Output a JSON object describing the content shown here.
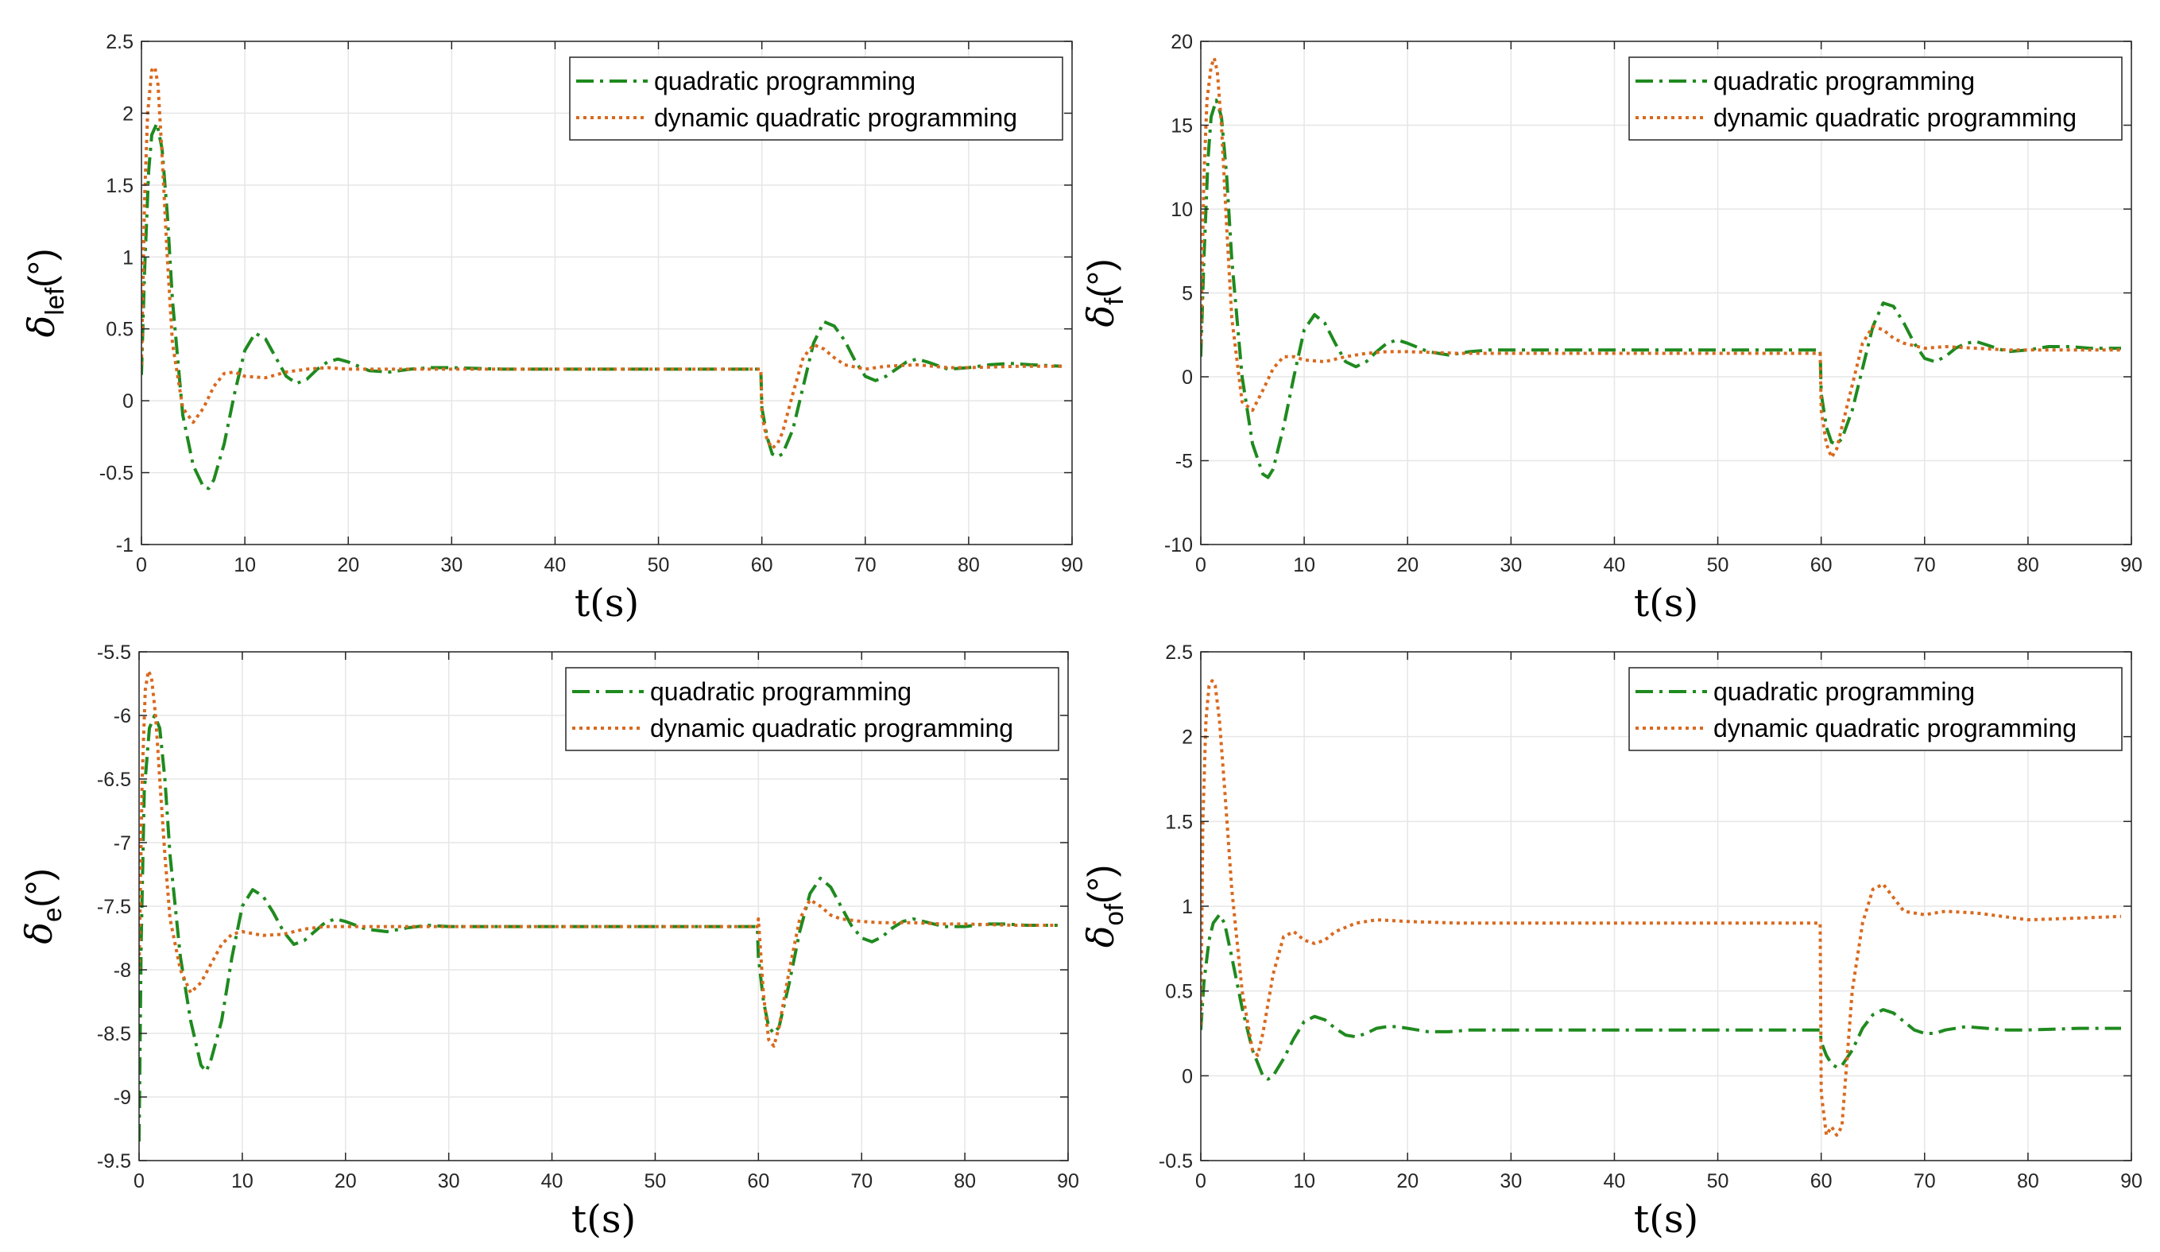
{
  "figure": {
    "legend_labels": [
      "quadratic programming",
      "dynamic quadratic programming"
    ],
    "colors": {
      "qp": "#1f8a1f",
      "dqp": "#d9691e",
      "grid": "#e6e6e6",
      "axis": "#262626"
    }
  },
  "chart_data": [
    {
      "id": "lef",
      "type": "line",
      "title": "",
      "xlabel": "t(s)",
      "ylabel": {
        "symbol": "δ",
        "subscript": "lef",
        "unit": "(°)"
      },
      "xlim": [
        0,
        90
      ],
      "ylim": [
        -1,
        2.5
      ],
      "xticks": [
        "0",
        "10",
        "20",
        "30",
        "40",
        "50",
        "60",
        "70",
        "80",
        "90"
      ],
      "yticks": [
        "-1",
        "-0.5",
        "0",
        "0.5",
        "1",
        "1.5",
        "2",
        "2.5"
      ],
      "legend": "top-right",
      "grid": true,
      "series": [
        {
          "name": "quadratic programming",
          "style": "dash-dot",
          "x": [
            0,
            0.3,
            0.7,
            1.0,
            1.5,
            2.0,
            2.5,
            3.0,
            4.0,
            5.0,
            6.0,
            6.5,
            7.0,
            8.0,
            9.0,
            10.0,
            11.0,
            12.0,
            13.0,
            14.0,
            15.0,
            16.0,
            17.0,
            18.0,
            19.0,
            20.0,
            22.0,
            24.0,
            26.0,
            28.0,
            30.0,
            35.0,
            40.0,
            50.0,
            59.9,
            60.0,
            60.5,
            61.0,
            61.5,
            62.0,
            63.0,
            64.0,
            65.0,
            66.0,
            67.0,
            68.0,
            69.0,
            70.0,
            71.0,
            72.0,
            73.0,
            74.0,
            75.0,
            76.0,
            78.0,
            80.0,
            82.0,
            84.0,
            86.0,
            89.0
          ],
          "y": [
            0.18,
            0.9,
            1.6,
            1.85,
            1.93,
            1.75,
            1.3,
            0.7,
            -0.1,
            -0.45,
            -0.6,
            -0.61,
            -0.55,
            -0.3,
            0.05,
            0.35,
            0.47,
            0.43,
            0.3,
            0.17,
            0.12,
            0.15,
            0.22,
            0.27,
            0.29,
            0.27,
            0.21,
            0.2,
            0.22,
            0.23,
            0.23,
            0.22,
            0.22,
            0.22,
            0.22,
            -0.05,
            -0.25,
            -0.37,
            -0.39,
            -0.37,
            -0.2,
            0.1,
            0.4,
            0.55,
            0.52,
            0.42,
            0.28,
            0.17,
            0.14,
            0.17,
            0.22,
            0.27,
            0.29,
            0.27,
            0.22,
            0.23,
            0.25,
            0.26,
            0.25,
            0.24
          ]
        },
        {
          "name": "dynamic quadratic programming",
          "style": "dotted",
          "x": [
            0,
            0.3,
            0.6,
            1.0,
            1.3,
            1.6,
            2.0,
            2.5,
            3.0,
            4.0,
            5.0,
            6.0,
            7.0,
            8.0,
            9.0,
            10.0,
            12.0,
            14.0,
            16.0,
            18.0,
            20.0,
            25.0,
            30.0,
            40.0,
            50.0,
            59.9,
            60.0,
            60.5,
            61.0,
            61.5,
            62.0,
            63.0,
            64.0,
            65.0,
            66.0,
            67.0,
            68.0,
            70.0,
            72.0,
            75.0,
            78.0,
            80.0,
            85.0,
            89.0
          ],
          "y": [
            0.25,
            1.4,
            2.0,
            2.3,
            2.32,
            2.2,
            1.7,
            1.0,
            0.4,
            -0.05,
            -0.15,
            -0.05,
            0.1,
            0.19,
            0.2,
            0.17,
            0.16,
            0.2,
            0.22,
            0.23,
            0.22,
            0.22,
            0.22,
            0.22,
            0.22,
            0.22,
            -0.1,
            -0.27,
            -0.33,
            -0.3,
            -0.22,
            0.05,
            0.3,
            0.39,
            0.36,
            0.3,
            0.25,
            0.22,
            0.24,
            0.25,
            0.23,
            0.23,
            0.24,
            0.24
          ]
        }
      ]
    },
    {
      "id": "f",
      "type": "line",
      "title": "",
      "xlabel": "t(s)",
      "ylabel": {
        "symbol": "δ",
        "subscript": "f",
        "unit": "(°)"
      },
      "xlim": [
        0,
        90
      ],
      "ylim": [
        -10,
        20
      ],
      "xticks": [
        "0",
        "10",
        "20",
        "30",
        "40",
        "50",
        "60",
        "70",
        "80",
        "90"
      ],
      "yticks": [
        "-10",
        "-5",
        "0",
        "5",
        "10",
        "15",
        "20"
      ],
      "legend": "top-right",
      "grid": true,
      "series": [
        {
          "name": "quadratic programming",
          "style": "dash-dot",
          "x": [
            0,
            0.3,
            0.7,
            1.0,
            1.5,
            2.0,
            2.5,
            3.0,
            4.0,
            5.0,
            6.0,
            6.5,
            7.0,
            8.0,
            9.0,
            10.0,
            11.0,
            12.0,
            13.0,
            14.0,
            15.0,
            16.0,
            17.0,
            18.0,
            19.0,
            20.0,
            22.0,
            24.0,
            26.0,
            28.0,
            30.0,
            35.0,
            40.0,
            50.0,
            59.9,
            60.0,
            60.5,
            61.0,
            61.5,
            62.0,
            63.0,
            64.0,
            65.0,
            66.0,
            67.0,
            68.0,
            69.0,
            70.0,
            71.0,
            72.0,
            73.0,
            74.0,
            75.0,
            76.0,
            78.0,
            80.0,
            82.0,
            84.0,
            86.0,
            89.0
          ],
          "y": [
            1.2,
            7.0,
            13.0,
            15.5,
            16.5,
            15.5,
            12.0,
            7.0,
            0.0,
            -4.0,
            -5.8,
            -6.0,
            -5.5,
            -3.0,
            0.0,
            2.8,
            3.7,
            3.2,
            2.0,
            0.9,
            0.6,
            0.9,
            1.5,
            2.0,
            2.2,
            2.0,
            1.5,
            1.3,
            1.5,
            1.6,
            1.6,
            1.6,
            1.6,
            1.6,
            1.6,
            -1.0,
            -3.0,
            -3.9,
            -4.0,
            -3.7,
            -2.0,
            0.5,
            3.0,
            4.4,
            4.2,
            3.2,
            2.0,
            1.1,
            0.9,
            1.2,
            1.7,
            2.0,
            2.1,
            1.9,
            1.5,
            1.6,
            1.8,
            1.8,
            1.7,
            1.7
          ]
        },
        {
          "name": "dynamic quadratic programming",
          "style": "dotted",
          "x": [
            0,
            0.3,
            0.6,
            1.0,
            1.3,
            1.6,
            2.0,
            2.5,
            3.0,
            4.0,
            5.0,
            6.0,
            7.0,
            8.0,
            9.0,
            10.0,
            12.0,
            14.0,
            16.0,
            18.0,
            20.0,
            25.0,
            30.0,
            40.0,
            50.0,
            59.9,
            60.0,
            60.5,
            61.0,
            61.5,
            62.0,
            63.0,
            64.0,
            65.0,
            66.0,
            67.0,
            68.0,
            70.0,
            72.0,
            75.0,
            78.0,
            80.0,
            85.0,
            89.0
          ],
          "y": [
            2.0,
            12.0,
            16.5,
            18.5,
            19.0,
            18.2,
            15.0,
            9.0,
            3.5,
            -1.5,
            -2.0,
            -0.8,
            0.5,
            1.2,
            1.2,
            1.0,
            0.9,
            1.2,
            1.4,
            1.5,
            1.5,
            1.4,
            1.4,
            1.4,
            1.4,
            1.4,
            -2.0,
            -4.0,
            -4.8,
            -4.3,
            -3.0,
            -0.5,
            2.0,
            3.0,
            2.8,
            2.3,
            2.0,
            1.7,
            1.8,
            1.7,
            1.6,
            1.6,
            1.6,
            1.6
          ]
        }
      ]
    },
    {
      "id": "e",
      "type": "line",
      "title": "",
      "xlabel": "t(s)",
      "ylabel": {
        "symbol": "δ",
        "subscript": "e",
        "unit": "(°)"
      },
      "xlim": [
        0,
        90
      ],
      "ylim": [
        -9.5,
        -5.5
      ],
      "xticks": [
        "0",
        "10",
        "20",
        "30",
        "40",
        "50",
        "60",
        "70",
        "80",
        "90"
      ],
      "yticks": [
        "-9.5",
        "-9",
        "-8.5",
        "-8",
        "-7.5",
        "-7",
        "-6.5",
        "-6",
        "-5.5"
      ],
      "legend": "top-right",
      "grid": true,
      "series": [
        {
          "name": "quadratic programming",
          "style": "dash-dot",
          "x": [
            0,
            0.2,
            0.5,
            1.0,
            1.5,
            2.0,
            2.5,
            3.0,
            4.0,
            5.0,
            6.0,
            6.5,
            7.0,
            8.0,
            9.0,
            10.0,
            11.0,
            12.0,
            13.0,
            14.0,
            15.0,
            16.0,
            17.0,
            18.0,
            19.0,
            20.0,
            22.0,
            24.0,
            26.0,
            28.0,
            30.0,
            35.0,
            40.0,
            50.0,
            59.9,
            60.0,
            60.5,
            61.0,
            61.5,
            62.0,
            63.0,
            64.0,
            65.0,
            66.0,
            67.0,
            68.0,
            69.0,
            70.0,
            71.0,
            72.0,
            73.0,
            74.0,
            75.0,
            76.0,
            78.0,
            80.0,
            82.0,
            84.0,
            86.0,
            89.0
          ],
          "y": [
            -9.35,
            -7.8,
            -6.6,
            -6.1,
            -6.0,
            -6.1,
            -6.5,
            -7.1,
            -7.9,
            -8.4,
            -8.75,
            -8.8,
            -8.7,
            -8.4,
            -7.9,
            -7.5,
            -7.37,
            -7.42,
            -7.55,
            -7.7,
            -7.8,
            -7.77,
            -7.7,
            -7.63,
            -7.6,
            -7.62,
            -7.68,
            -7.7,
            -7.67,
            -7.65,
            -7.66,
            -7.66,
            -7.66,
            -7.66,
            -7.66,
            -7.9,
            -8.25,
            -8.45,
            -8.5,
            -8.45,
            -8.1,
            -7.7,
            -7.4,
            -7.28,
            -7.35,
            -7.5,
            -7.65,
            -7.75,
            -7.78,
            -7.74,
            -7.67,
            -7.62,
            -7.6,
            -7.62,
            -7.66,
            -7.66,
            -7.64,
            -7.64,
            -7.65,
            -7.65
          ]
        },
        {
          "name": "dynamic quadratic programming",
          "style": "dotted",
          "x": [
            0,
            0.3,
            0.6,
            0.9,
            1.2,
            1.6,
            2.0,
            2.5,
            3.0,
            4.0,
            5.0,
            6.0,
            7.0,
            8.0,
            9.0,
            10.0,
            12.0,
            14.0,
            16.0,
            18.0,
            20.0,
            25.0,
            30.0,
            40.0,
            50.0,
            59.9,
            60.0,
            60.5,
            61.0,
            61.5,
            62.0,
            63.0,
            64.0,
            65.0,
            66.0,
            67.0,
            68.0,
            70.0,
            72.0,
            75.0,
            78.0,
            80.0,
            85.0,
            89.0
          ],
          "y": [
            -8.0,
            -6.5,
            -5.8,
            -5.65,
            -5.7,
            -6.0,
            -6.5,
            -7.1,
            -7.6,
            -8.0,
            -8.18,
            -8.1,
            -7.95,
            -7.8,
            -7.72,
            -7.7,
            -7.73,
            -7.72,
            -7.68,
            -7.66,
            -7.66,
            -7.66,
            -7.66,
            -7.66,
            -7.66,
            -7.66,
            -7.6,
            -8.2,
            -8.55,
            -8.6,
            -8.45,
            -8.0,
            -7.6,
            -7.45,
            -7.5,
            -7.57,
            -7.6,
            -7.62,
            -7.63,
            -7.63,
            -7.64,
            -7.64,
            -7.65,
            -7.65
          ]
        }
      ]
    },
    {
      "id": "of",
      "type": "line",
      "title": "",
      "xlabel": "t(s)",
      "ylabel": {
        "symbol": "δ",
        "subscript": "of",
        "unit": "(°)"
      },
      "xlim": [
        0,
        90
      ],
      "ylim": [
        -0.5,
        2.5
      ],
      "xticks": [
        "0",
        "10",
        "20",
        "30",
        "40",
        "50",
        "60",
        "70",
        "80",
        "90"
      ],
      "yticks": [
        "-0.5",
        "0",
        "0.5",
        "1",
        "1.5",
        "2",
        "2.5"
      ],
      "legend": "top-right",
      "grid": true,
      "series": [
        {
          "name": "quadratic programming",
          "style": "dash-dot",
          "x": [
            0,
            0.3,
            0.8,
            1.2,
            1.8,
            2.3,
            3.0,
            4.0,
            5.0,
            6.0,
            6.5,
            7.0,
            8.0,
            9.0,
            10.0,
            11.0,
            12.0,
            13.0,
            14.0,
            15.0,
            16.0,
            17.0,
            18.0,
            19.0,
            20.0,
            22.0,
            24.0,
            26.0,
            28.0,
            30.0,
            35.0,
            40.0,
            50.0,
            59.9,
            60.0,
            60.5,
            61.0,
            61.5,
            62.0,
            63.0,
            64.0,
            65.0,
            66.0,
            67.0,
            68.0,
            69.0,
            70.0,
            71.0,
            72.0,
            74.0,
            76.0,
            78.0,
            80.0,
            85.0,
            89.0
          ],
          "y": [
            0.27,
            0.55,
            0.8,
            0.9,
            0.95,
            0.9,
            0.7,
            0.4,
            0.15,
            0.0,
            -0.02,
            0.0,
            0.1,
            0.22,
            0.32,
            0.35,
            0.33,
            0.28,
            0.24,
            0.23,
            0.25,
            0.28,
            0.29,
            0.29,
            0.28,
            0.26,
            0.26,
            0.27,
            0.27,
            0.27,
            0.27,
            0.27,
            0.27,
            0.27,
            0.2,
            0.12,
            0.07,
            0.05,
            0.06,
            0.15,
            0.28,
            0.36,
            0.39,
            0.37,
            0.32,
            0.27,
            0.25,
            0.25,
            0.27,
            0.29,
            0.28,
            0.27,
            0.27,
            0.28,
            0.28
          ]
        },
        {
          "name": "dynamic quadratic programming",
          "style": "dotted",
          "x": [
            0,
            0.2,
            0.5,
            0.8,
            1.1,
            1.4,
            1.8,
            2.3,
            3.0,
            4.0,
            5.0,
            5.5,
            6.0,
            7.0,
            8.0,
            9.0,
            10.0,
            11.0,
            12.0,
            13.0,
            15.0,
            17.0,
            20.0,
            25.0,
            30.0,
            40.0,
            50.0,
            59.9,
            60.0,
            60.5,
            61.0,
            61.5,
            62.0,
            62.5,
            63.0,
            64.0,
            65.0,
            66.0,
            67.0,
            68.0,
            70.0,
            72.0,
            75.0,
            80.0,
            85.0,
            89.0
          ],
          "y": [
            0.3,
            1.5,
            2.1,
            2.3,
            2.33,
            2.3,
            2.1,
            1.7,
            1.1,
            0.5,
            0.15,
            0.12,
            0.25,
            0.6,
            0.82,
            0.85,
            0.8,
            0.78,
            0.8,
            0.85,
            0.9,
            0.92,
            0.91,
            0.9,
            0.9,
            0.9,
            0.9,
            0.9,
            -0.1,
            -0.35,
            -0.3,
            -0.35,
            -0.3,
            0.1,
            0.5,
            0.9,
            1.1,
            1.13,
            1.05,
            0.97,
            0.95,
            0.97,
            0.96,
            0.92,
            0.93,
            0.94
          ]
        }
      ]
    }
  ]
}
